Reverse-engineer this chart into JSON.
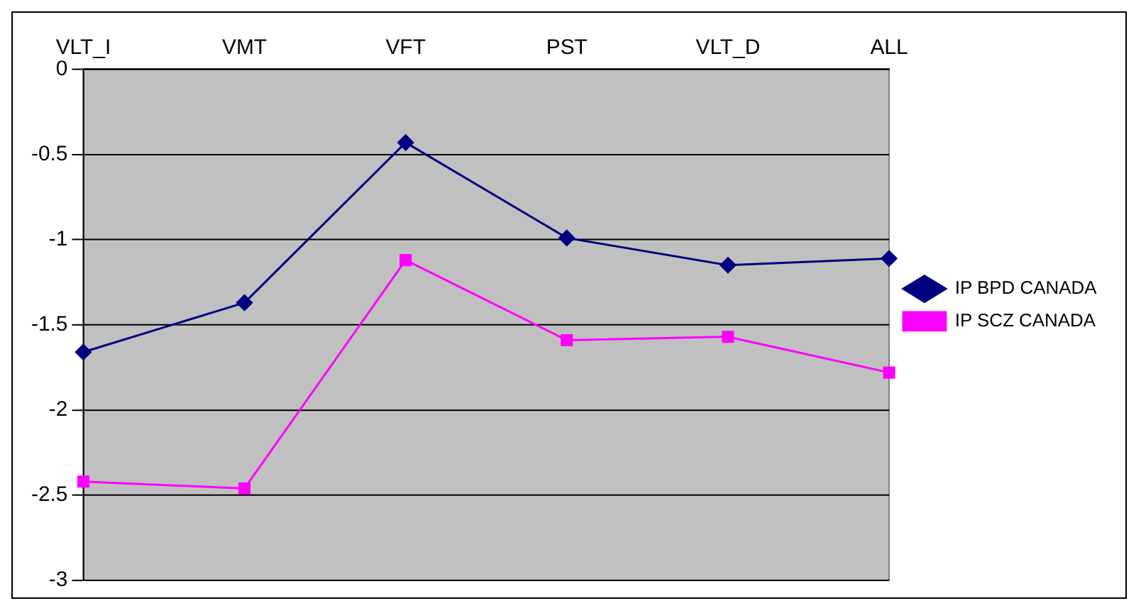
{
  "chart_data": {
    "type": "line",
    "categories": [
      "VLT_I",
      "VMT",
      "VFT",
      "PST",
      "VLT_D",
      "ALL"
    ],
    "series": [
      {
        "name": "IP BPD CANADA",
        "color": "#000080",
        "marker": "diamond",
        "values": [
          -1.66,
          -1.37,
          -0.43,
          -0.99,
          -1.15,
          -1.11
        ]
      },
      {
        "name": "IP SCZ CANADA",
        "color": "#ff00ff",
        "marker": "square",
        "values": [
          -2.42,
          -2.46,
          -1.12,
          -1.59,
          -1.57,
          -1.78
        ]
      }
    ],
    "ylim": [
      -3,
      0
    ],
    "yticks": [
      -3,
      -2.5,
      -2,
      -1.5,
      -1,
      -0.5,
      0
    ],
    "grid": "y",
    "legend": "right",
    "line_style": "solid"
  }
}
